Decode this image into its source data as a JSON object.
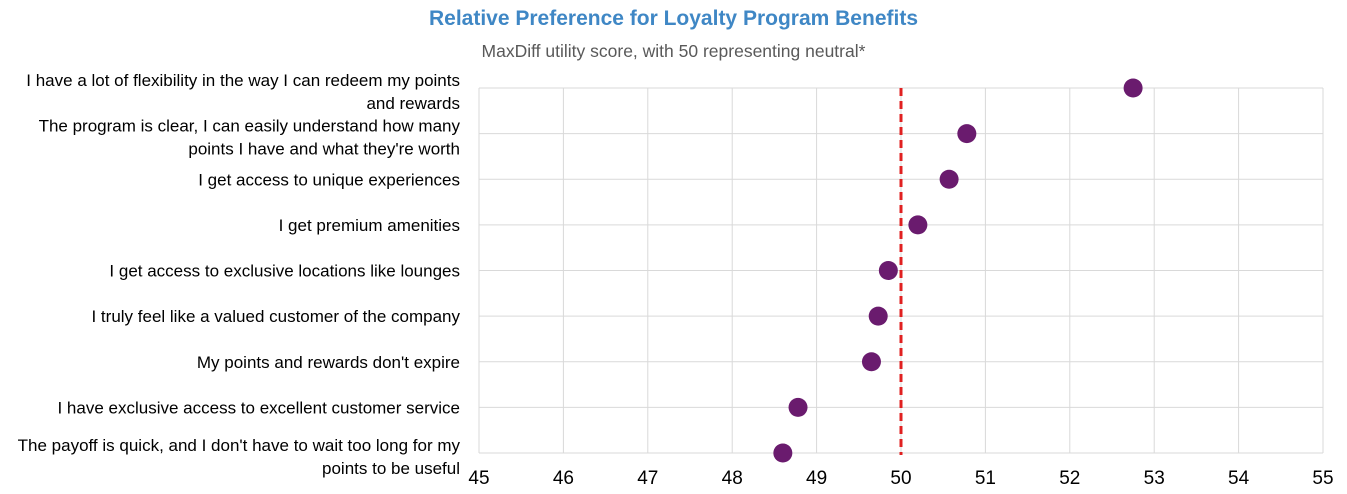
{
  "chart_data": {
    "type": "scatter",
    "title": "Relative Preference for Loyalty Program Benefits",
    "subtitle": "MaxDiff utility score, with 50 representing neutral*",
    "xlabel": "",
    "ylabel": "",
    "xlim": [
      45,
      55
    ],
    "xticks": [
      "45",
      "46",
      "47",
      "48",
      "49",
      "50",
      "51",
      "52",
      "53",
      "54",
      "55"
    ],
    "grid": true,
    "reference_line": {
      "value": 50,
      "style": "dashed",
      "color": "#e02020"
    },
    "point_color": "#6a1b6e",
    "categories": [
      [
        "I have a lot of flexibility in the way I can redeem my points",
        "and rewards"
      ],
      [
        "The program is clear, I can easily understand how many",
        "points I have and what they're worth"
      ],
      [
        "I get access to unique experiences"
      ],
      [
        "I get premium amenities"
      ],
      [
        "I get access to exclusive locations like lounges"
      ],
      [
        "I truly feel like a valued customer of the company"
      ],
      [
        "My points and rewards don't expire"
      ],
      [
        "I have exclusive access to excellent customer service"
      ],
      [
        "The payoff is quick, and I don't have to wait too long for my",
        "points to be useful"
      ]
    ],
    "values": [
      52.75,
      50.78,
      50.57,
      50.2,
      49.85,
      49.73,
      49.65,
      48.78,
      48.6
    ]
  }
}
